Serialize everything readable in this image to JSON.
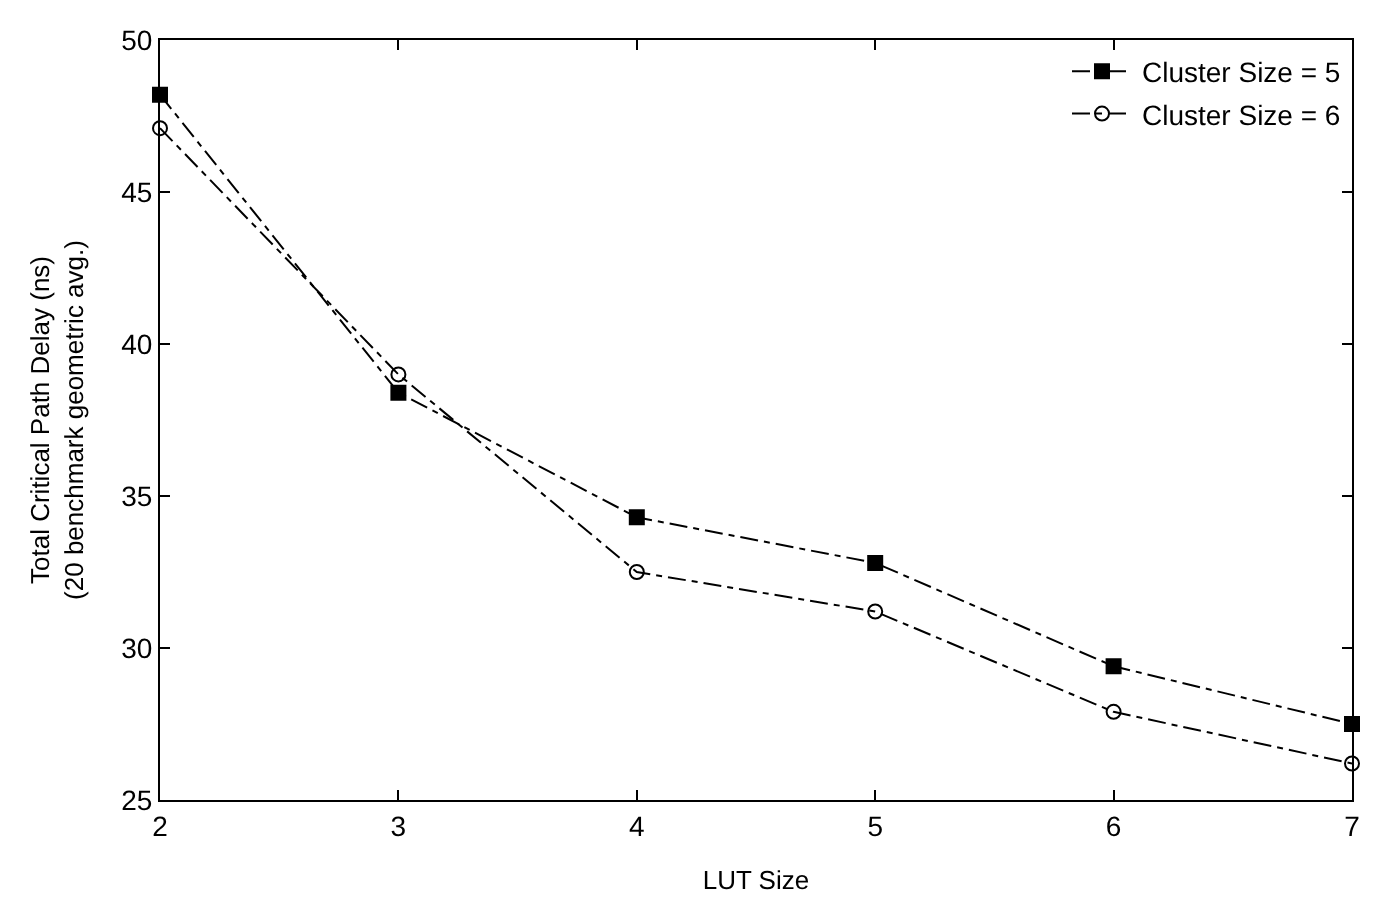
{
  "chart_data": {
    "type": "line",
    "xlabel": "LUT Size",
    "ylabel": "Total Critical Path Delay (ns)\n(20 benchmark geometric avg.)",
    "x": [
      2,
      3,
      4,
      5,
      6,
      7
    ],
    "series": [
      {
        "name": "Cluster Size = 5",
        "color": "#000000",
        "marker": "square",
        "values": [
          48.2,
          38.4,
          34.3,
          32.8,
          29.4,
          27.5
        ]
      },
      {
        "name": "Cluster Size = 6",
        "color": "#000000",
        "marker": "circle",
        "values": [
          47.1,
          39.0,
          32.5,
          31.2,
          27.9,
          26.2
        ]
      }
    ],
    "line_style": "dashed",
    "xlim": [
      2,
      7
    ],
    "xticks": [
      2,
      3,
      4,
      5,
      6,
      7
    ],
    "ylim": [
      25,
      50
    ],
    "yticks": [
      25,
      30,
      35,
      40,
      45,
      50
    ],
    "legend": "top right"
  }
}
